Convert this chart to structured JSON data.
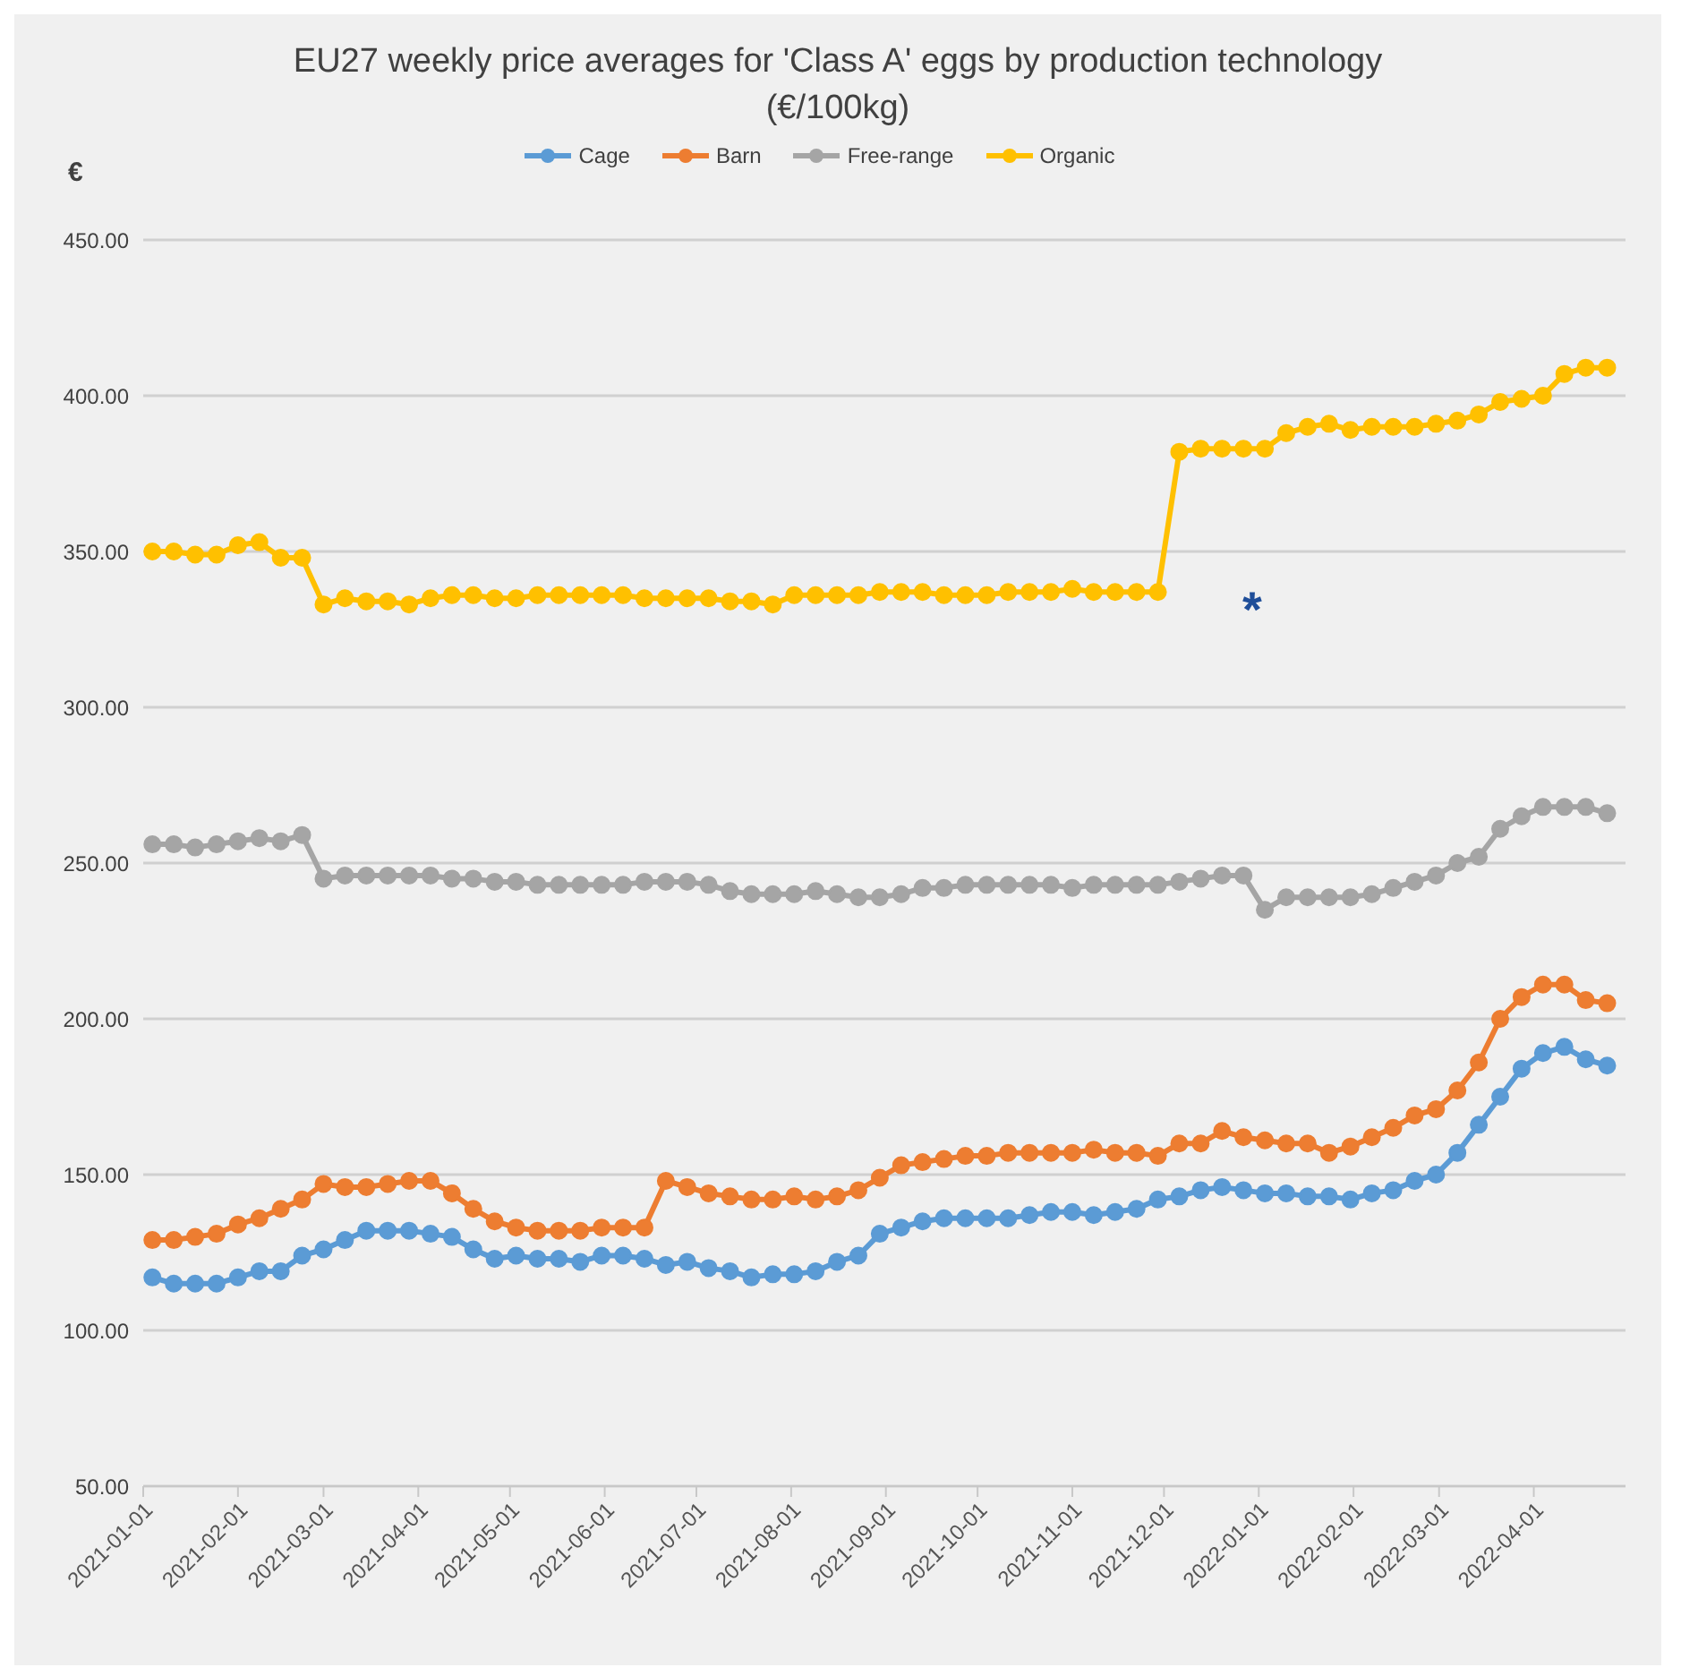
{
  "chart_data": {
    "type": "line",
    "title": "EU27 weekly price averages for 'Class A' eggs by production technology",
    "subtitle": "(€/100kg)",
    "ylabel": "€",
    "x": [
      "2021-01-04",
      "2021-01-11",
      "2021-01-18",
      "2021-01-25",
      "2021-02-01",
      "2021-02-08",
      "2021-02-15",
      "2021-02-22",
      "2021-03-01",
      "2021-03-08",
      "2021-03-15",
      "2021-03-22",
      "2021-03-29",
      "2021-04-05",
      "2021-04-12",
      "2021-04-19",
      "2021-04-26",
      "2021-05-03",
      "2021-05-10",
      "2021-05-17",
      "2021-05-24",
      "2021-05-31",
      "2021-06-07",
      "2021-06-14",
      "2021-06-21",
      "2021-06-28",
      "2021-07-05",
      "2021-07-12",
      "2021-07-19",
      "2021-07-26",
      "2021-08-02",
      "2021-08-09",
      "2021-08-16",
      "2021-08-23",
      "2021-08-30",
      "2021-09-06",
      "2021-09-13",
      "2021-09-20",
      "2021-09-27",
      "2021-10-04",
      "2021-10-11",
      "2021-10-18",
      "2021-10-25",
      "2021-11-01",
      "2021-11-08",
      "2021-11-15",
      "2021-11-22",
      "2021-11-29",
      "2021-12-06",
      "2021-12-13",
      "2021-12-20",
      "2021-12-27",
      "2022-01-03",
      "2022-01-10",
      "2022-01-17",
      "2022-01-24",
      "2022-01-31",
      "2022-02-07",
      "2022-02-14",
      "2022-02-21",
      "2022-02-28",
      "2022-03-07",
      "2022-03-14",
      "2022-03-21",
      "2022-03-28",
      "2022-04-04",
      "2022-04-11",
      "2022-04-18",
      "2022-04-25"
    ],
    "series": [
      {
        "name": "Cage",
        "color": "#5b9bd5",
        "values": [
          117,
          115,
          115,
          115,
          117,
          119,
          119,
          124,
          126,
          129,
          132,
          132,
          132,
          131,
          130,
          126,
          123,
          124,
          123,
          123,
          122,
          124,
          124,
          123,
          121,
          122,
          120,
          119,
          117,
          118,
          118,
          119,
          122,
          124,
          131,
          133,
          135,
          136,
          136,
          136,
          136,
          137,
          138,
          138,
          137,
          138,
          139,
          142,
          143,
          145,
          146,
          145,
          144,
          144,
          143,
          143,
          142,
          144,
          145,
          148,
          150,
          157,
          166,
          175,
          184,
          189,
          191,
          187,
          185
        ]
      },
      {
        "name": "Barn",
        "color": "#ed7d31",
        "values": [
          129,
          129,
          130,
          131,
          134,
          136,
          139,
          142,
          147,
          146,
          146,
          147,
          148,
          148,
          144,
          139,
          135,
          133,
          132,
          132,
          132,
          133,
          133,
          133,
          148,
          146,
          144,
          143,
          142,
          142,
          143,
          142,
          143,
          145,
          149,
          153,
          154,
          155,
          156,
          156,
          157,
          157,
          157,
          157,
          158,
          157,
          157,
          156,
          160,
          160,
          164,
          162,
          161,
          160,
          160,
          157,
          159,
          162,
          165,
          169,
          171,
          177,
          186,
          200,
          207,
          211,
          211,
          206,
          205
        ]
      },
      {
        "name": "Free-range",
        "color": "#a5a5a5",
        "values": [
          256,
          256,
          255,
          256,
          257,
          258,
          257,
          259,
          245,
          246,
          246,
          246,
          246,
          246,
          245,
          245,
          244,
          244,
          243,
          243,
          243,
          243,
          243,
          244,
          244,
          244,
          243,
          241,
          240,
          240,
          240,
          241,
          240,
          239,
          239,
          240,
          242,
          242,
          243,
          243,
          243,
          243,
          243,
          242,
          243,
          243,
          243,
          243,
          244,
          245,
          246,
          246,
          235,
          239,
          239,
          239,
          239,
          240,
          242,
          244,
          246,
          250,
          252,
          261,
          265,
          268,
          268,
          268,
          266
        ]
      },
      {
        "name": "Organic",
        "color": "#ffc000",
        "values": [
          350,
          350,
          349,
          349,
          352,
          353,
          348,
          348,
          333,
          335,
          334,
          334,
          333,
          335,
          336,
          336,
          335,
          335,
          336,
          336,
          336,
          336,
          336,
          335,
          335,
          335,
          335,
          334,
          334,
          333,
          336,
          336,
          336,
          336,
          337,
          337,
          337,
          336,
          336,
          336,
          337,
          337,
          337,
          338,
          337,
          337,
          337,
          337,
          382,
          383,
          383,
          383,
          383,
          388,
          390,
          391,
          389,
          390,
          390,
          390,
          391,
          392,
          394,
          398,
          399,
          400,
          407,
          409,
          409
        ]
      }
    ],
    "xlim": [
      "2021-01-01",
      "2022-05-01"
    ],
    "xticks": [
      "2021-01-01",
      "2021-02-01",
      "2021-03-01",
      "2021-04-01",
      "2021-05-01",
      "2021-06-01",
      "2021-07-01",
      "2021-08-01",
      "2021-09-01",
      "2021-10-01",
      "2021-11-01",
      "2021-12-01",
      "2022-01-01",
      "2022-02-01",
      "2022-03-01",
      "2022-04-01"
    ],
    "ylim": [
      50,
      450
    ],
    "yticks": [
      {
        "value": 50,
        "label": "50.00"
      },
      {
        "value": 100,
        "label": "100.00"
      },
      {
        "value": 150,
        "label": "150.00"
      },
      {
        "value": 200,
        "label": "200.00"
      },
      {
        "value": 250,
        "label": "250.00"
      },
      {
        "value": 300,
        "label": "300.00"
      },
      {
        "value": 350,
        "label": "350.00"
      },
      {
        "value": 400,
        "label": "400.00"
      },
      {
        "value": 450,
        "label": "450.00"
      }
    ],
    "annotations": [
      "*"
    ],
    "grid": "y",
    "legend": "top",
    "marker": "circle",
    "line_style": "solid"
  }
}
